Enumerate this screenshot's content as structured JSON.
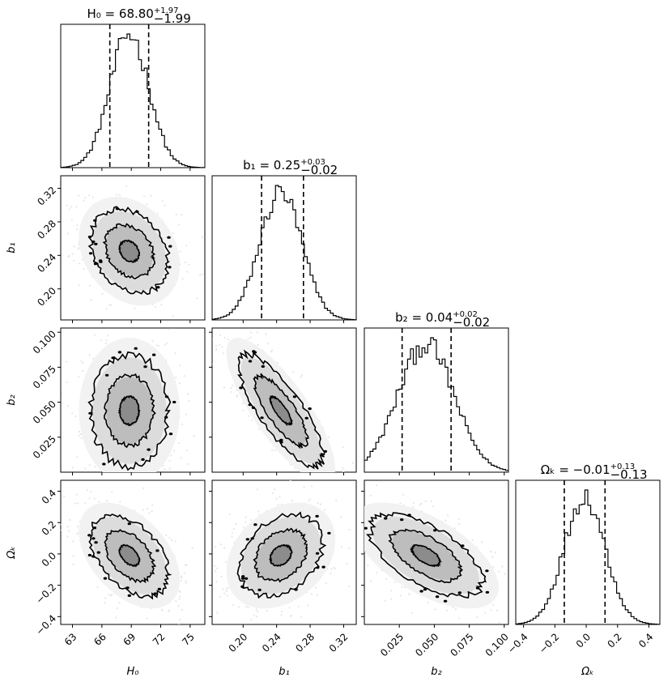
{
  "chart_data": {
    "type": "corner",
    "parameters": [
      {
        "key": "H0",
        "label": "H₀",
        "median": 68.8,
        "plus": 1.97,
        "minus": 1.99,
        "range": [
          61.8,
          76.5
        ],
        "ticks": [
          63,
          66,
          69,
          72,
          75
        ],
        "tick_labels": [
          "63",
          "66",
          "69",
          "72",
          "75"
        ],
        "title_value": "68.80",
        "title_plus": "+1.97",
        "title_minus": "−1.99",
        "title_name": "H₀"
      },
      {
        "key": "b1",
        "label": "b₁",
        "median": 0.245,
        "plus": 0.03,
        "minus": 0.02,
        "range": [
          0.163,
          0.335
        ],
        "ticks": [
          0.2,
          0.24,
          0.28,
          0.32
        ],
        "tick_labels": [
          "0.20",
          "0.24",
          "0.28",
          "0.32"
        ],
        "title_value": "0.25",
        "title_plus": "+0.03",
        "title_minus": "−0.02",
        "title_name": "b₁"
      },
      {
        "key": "b2",
        "label": "b₂",
        "median": 0.044,
        "plus": 0.02,
        "minus": 0.02,
        "range": [
          0.0,
          0.103
        ],
        "ticks": [
          0.025,
          0.05,
          0.075,
          0.1
        ],
        "tick_labels": [
          "0.025",
          "0.050",
          "0.075",
          "0.100"
        ],
        "title_value": "0.04",
        "title_plus": "+0.02",
        "title_minus": "−0.02",
        "title_name": "b₂"
      },
      {
        "key": "Ok",
        "label": "Ωₖ",
        "median": -0.01,
        "plus": 0.13,
        "minus": 0.13,
        "range": [
          -0.45,
          0.47
        ],
        "ticks": [
          -0.4,
          -0.2,
          0.0,
          0.2,
          0.4
        ],
        "tick_labels": [
          "−0.4",
          "−0.2",
          "0.0",
          "0.2",
          "0.4"
        ],
        "title_value": "−0.01",
        "title_plus": "+0.13",
        "title_minus": "−0.13",
        "title_name": "Ωₖ"
      }
    ],
    "quantile_lines": {
      "H0": [
        66.81,
        70.77
      ],
      "b1": [
        0.222,
        0.272
      ],
      "b2": [
        0.027,
        0.062
      ],
      "Ok": [
        -0.14,
        0.12
      ]
    },
    "correlations": {
      "H0-b1": -0.25,
      "H0-b2": 0.0,
      "b1-b2": -0.8,
      "H0-Ok": -0.45,
      "b1-Ok": 0.3,
      "b2-Ok": -0.6
    },
    "title_equals": "=",
    "histogram_style": "step",
    "contour_levels": [
      "1-sigma",
      "2-sigma",
      "3-sigma"
    ]
  }
}
